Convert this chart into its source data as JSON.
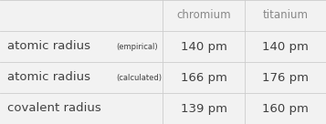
{
  "columns": [
    "",
    "chromium",
    "titanium"
  ],
  "rows": [
    {
      "label_main": "atomic radius",
      "label_sub": "(empirical)",
      "chromium": "140 pm",
      "titanium": "140 pm"
    },
    {
      "label_main": "atomic radius",
      "label_sub": "(calculated)",
      "chromium": "166 pm",
      "titanium": "176 pm"
    },
    {
      "label_main": "covalent radius",
      "label_sub": "",
      "chromium": "139 pm",
      "titanium": "160 pm"
    }
  ],
  "background_color": "#f2f2f2",
  "header_text_color": "#888888",
  "cell_text_color": "#404040",
  "line_color": "#cccccc",
  "font_size_header": 8.5,
  "font_size_label_main": 9.5,
  "font_size_label_sub": 6.0,
  "font_size_data": 9.5
}
